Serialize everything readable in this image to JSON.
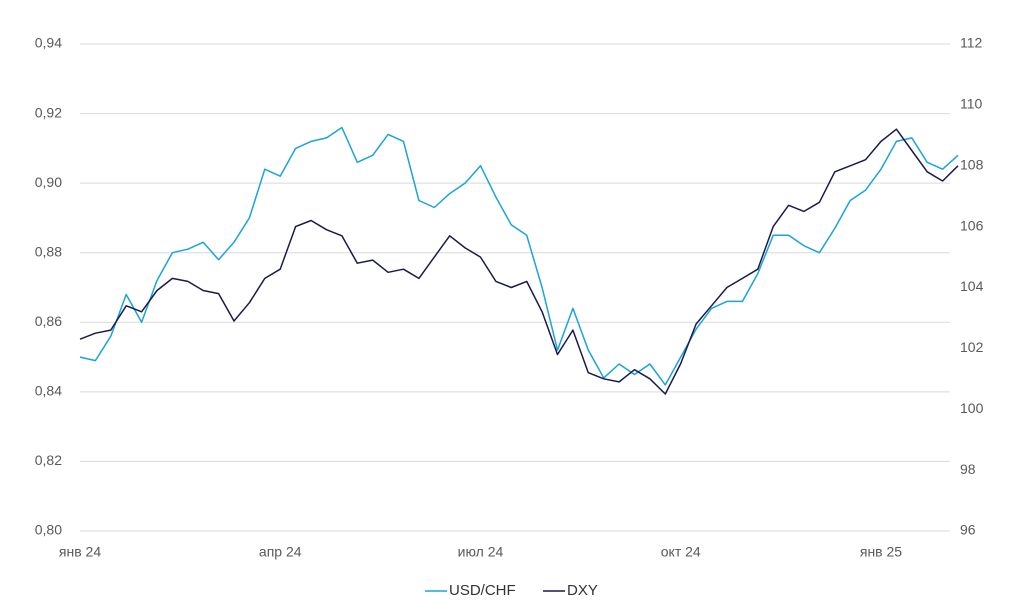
{
  "chart_data": {
    "type": "line",
    "categories": [
      "янв 24",
      null,
      null,
      null,
      null,
      null,
      null,
      null,
      null,
      null,
      null,
      null,
      null,
      "апр 24",
      null,
      null,
      null,
      null,
      null,
      null,
      null,
      null,
      null,
      null,
      null,
      null,
      "июл 24",
      null,
      null,
      null,
      null,
      null,
      null,
      null,
      null,
      null,
      null,
      null,
      null,
      "окт 24",
      null,
      null,
      null,
      null,
      null,
      null,
      null,
      null,
      null,
      null,
      null,
      null,
      "янв 25",
      null,
      null,
      null,
      null,
      null
    ],
    "series": [
      {
        "name": "USD/CHF",
        "color": "#1aa3dd",
        "values": [
          0.85,
          0.849,
          0.856,
          0.868,
          0.86,
          0.872,
          0.88,
          0.881,
          0.883,
          0.878,
          0.883,
          0.89,
          0.904,
          0.902,
          0.91,
          0.912,
          0.913,
          0.916,
          0.906,
          0.908,
          0.914,
          0.912,
          0.895,
          0.893,
          0.897,
          0.9,
          0.905,
          0.896,
          0.888,
          0.885,
          0.87,
          0.852,
          0.864,
          0.852,
          0.844,
          0.848,
          0.845,
          0.848,
          0.842,
          0.85,
          0.858,
          0.864,
          0.866,
          0.866,
          0.874,
          0.885,
          0.885,
          0.882,
          0.88,
          0.887,
          0.895,
          0.898,
          0.904,
          0.912,
          0.913,
          0.906,
          0.904,
          0.908
        ]
      },
      {
        "name": "DXY",
        "color": "#1a1a4e",
        "axis": "y2",
        "values": [
          102.3,
          102.5,
          102.6,
          103.4,
          103.2,
          103.9,
          104.3,
          104.2,
          103.9,
          103.8,
          102.9,
          103.5,
          104.3,
          104.6,
          106.0,
          106.2,
          105.9,
          105.7,
          104.8,
          104.9,
          104.5,
          104.6,
          104.3,
          105.0,
          105.7,
          105.3,
          105.0,
          104.2,
          104.0,
          104.2,
          103.2,
          101.8,
          102.6,
          101.2,
          101.0,
          100.9,
          101.3,
          101.0,
          100.5,
          101.5,
          102.8,
          103.4,
          104.0,
          104.3,
          104.6,
          106.0,
          106.7,
          106.5,
          106.8,
          107.8,
          108.0,
          108.2,
          108.8,
          109.2,
          108.5,
          107.8,
          107.5,
          108.0
        ]
      }
    ],
    "ylim": [
      0.8,
      0.94
    ],
    "yticks": [
      {
        "value": 0.8,
        "label": "0,80"
      },
      {
        "value": 0.82,
        "label": "0,82"
      },
      {
        "value": 0.84,
        "label": "0,84"
      },
      {
        "value": 0.86,
        "label": "0,86"
      },
      {
        "value": 0.88,
        "label": "0,88"
      },
      {
        "value": 0.9,
        "label": "0,90"
      },
      {
        "value": 0.92,
        "label": "0,92"
      },
      {
        "value": 0.94,
        "label": "0,94"
      }
    ],
    "y2lim": [
      96,
      112
    ],
    "y2ticks": [
      96,
      98,
      100,
      102,
      104,
      106,
      108,
      110,
      112
    ],
    "grid": true,
    "legend": "bottom"
  }
}
